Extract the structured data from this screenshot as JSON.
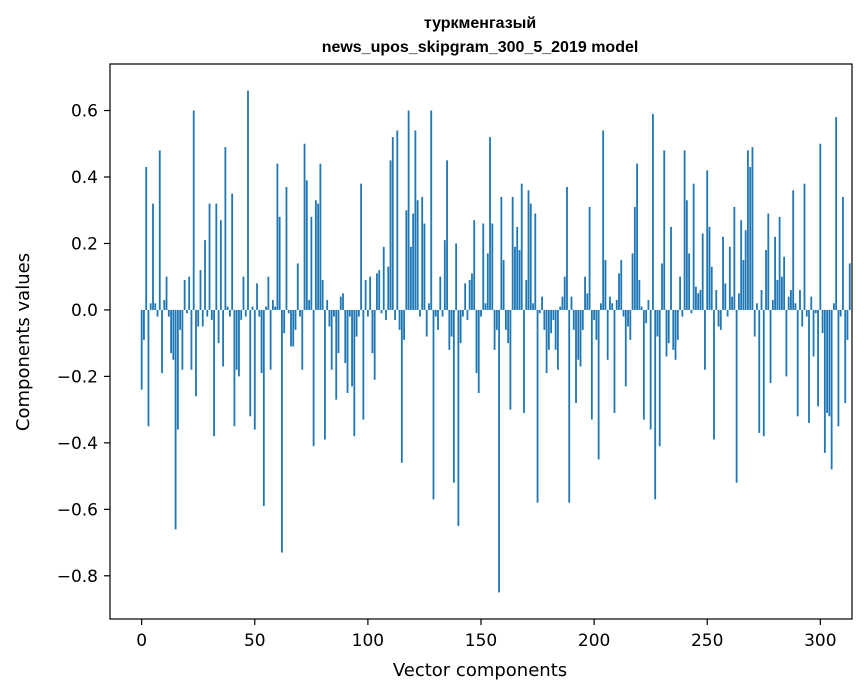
{
  "chart_data": {
    "type": "bar",
    "title_line1": "туркменгазый",
    "title_line2": "news_upos_skipgram_300_5_2019 model",
    "xlabel": "Vector components",
    "ylabel": "Components values",
    "xlim": [
      -14,
      314
    ],
    "ylim": [
      -0.93,
      0.74
    ],
    "xticks": [
      0,
      50,
      100,
      150,
      200,
      250,
      300
    ],
    "xtick_labels": [
      "0",
      "50",
      "100",
      "150",
      "200",
      "250",
      "300"
    ],
    "yticks": [
      -0.8,
      -0.6,
      -0.4,
      -0.2,
      0.0,
      0.2,
      0.4,
      0.6
    ],
    "ytick_labels": [
      "−0.8",
      "−0.6",
      "−0.4",
      "−0.2",
      "0.0",
      "0.2",
      "0.4",
      "0.6"
    ],
    "bar_color": "#1f77b4",
    "grid": false,
    "values": [
      -0.24,
      -0.09,
      0.43,
      -0.35,
      0.02,
      0.32,
      0.02,
      -0.02,
      0.48,
      -0.19,
      0.03,
      0.1,
      -0.02,
      -0.13,
      -0.15,
      -0.66,
      -0.36,
      -0.06,
      -0.18,
      0.09,
      -0.01,
      0.1,
      -0.18,
      0.6,
      -0.26,
      -0.05,
      0.12,
      -0.05,
      0.21,
      -0.02,
      0.32,
      -0.03,
      -0.38,
      0.32,
      -0.1,
      0.27,
      -0.17,
      0.49,
      0.01,
      -0.02,
      0.35,
      -0.35,
      -0.18,
      -0.2,
      -0.03,
      0.1,
      -0.02,
      0.66,
      -0.32,
      0.01,
      -0.36,
      0.08,
      -0.02,
      -0.19,
      -0.59,
      0.01,
      0.1,
      -0.18,
      0.03,
      0.01,
      0.44,
      0.28,
      -0.73,
      -0.07,
      0.37,
      -0.01,
      -0.11,
      -0.11,
      -0.06,
      0.14,
      -0.02,
      -0.18,
      0.5,
      0.39,
      0.03,
      0.28,
      -0.41,
      0.33,
      0.32,
      0.44,
      0.09,
      -0.39,
      0.03,
      -0.05,
      -0.18,
      -0.02,
      -0.27,
      -0.13,
      0.04,
      0.05,
      -0.16,
      -0.25,
      -0.02,
      -0.23,
      -0.38,
      -0.08,
      -0.02,
      0.38,
      -0.33,
      0.09,
      -0.02,
      0.1,
      -0.13,
      -0.21,
      0.11,
      0.12,
      -0.01,
      0.19,
      -0.03,
      0.13,
      0.45,
      0.52,
      -0.03,
      0.54,
      -0.06,
      -0.46,
      -0.09,
      0.3,
      0.6,
      0.19,
      0.29,
      0.54,
      0.33,
      -0.02,
      0.34,
      0.26,
      -0.08,
      0.02,
      0.6,
      -0.57,
      -0.02,
      -0.06,
      0.1,
      -0.02,
      0.21,
      0.45,
      -0.12,
      -0.08,
      -0.52,
      0.2,
      -0.65,
      -0.1,
      -0.02,
      0.08,
      -0.03,
      0.09,
      0.11,
      0.27,
      -0.19,
      -0.25,
      -0.02,
      0.26,
      0.02,
      0.17,
      0.52,
      0.26,
      -0.12,
      -0.06,
      -0.85,
      0.34,
      0.15,
      -0.06,
      -0.1,
      -0.3,
      0.34,
      0.19,
      0.25,
      0.18,
      0.38,
      -0.31,
      0.09,
      0.36,
      0.32,
      0.02,
      0.29,
      -0.58,
      -0.01,
      0.04,
      -0.06,
      -0.19,
      -0.12,
      -0.07,
      -0.03,
      -0.12,
      -0.18,
      0.01,
      0.04,
      0.1,
      0.37,
      -0.58,
      0.04,
      -0.06,
      -0.28,
      -0.15,
      -0.17,
      -0.06,
      0.1,
      0.05,
      0.31,
      -0.33,
      -0.03,
      -0.09,
      -0.45,
      0.02,
      0.54,
      0.15,
      -0.15,
      0.04,
      0.02,
      -0.31,
      0.03,
      0.11,
      0.15,
      -0.02,
      -0.23,
      -0.05,
      -0.09,
      0.17,
      0.31,
      0.44,
      0.09,
      0.01,
      -0.33,
      -0.04,
      0.03,
      -0.36,
      0.59,
      -0.57,
      -0.08,
      -0.41,
      0.14,
      0.48,
      -0.14,
      -0.1,
      0.25,
      -0.12,
      -0.15,
      -0.09,
      0.1,
      -0.02,
      0.48,
      0.33,
      0.17,
      -0.01,
      0.38,
      0.07,
      0.05,
      0.06,
      0.23,
      -0.18,
      0.42,
      0.25,
      0.13,
      -0.39,
      0.06,
      -0.05,
      -0.06,
      0.22,
      0.08,
      -0.02,
      0.19,
      0.04,
      0.31,
      -0.52,
      0.05,
      0.27,
      0.15,
      0.24,
      0.48,
      0.43,
      0.49,
      -0.08,
      0.02,
      -0.37,
      0.06,
      -0.38,
      0.18,
      0.29,
      -0.22,
      0.03,
      0.22,
      0.09,
      0.28,
      0.1,
      0.16,
      -0.2,
      0.04,
      0.06,
      0.36,
      0.02,
      -0.32,
      0.06,
      -0.05,
      0.38,
      -0.02,
      -0.34,
      0.04,
      -0.14,
      -0.01,
      -0.29,
      0.5,
      -0.07,
      -0.43,
      -0.31,
      -0.32,
      -0.48,
      0.02,
      0.58,
      -0.35,
      -0.02,
      0.34,
      -0.28,
      -0.09,
      0.14
    ]
  }
}
